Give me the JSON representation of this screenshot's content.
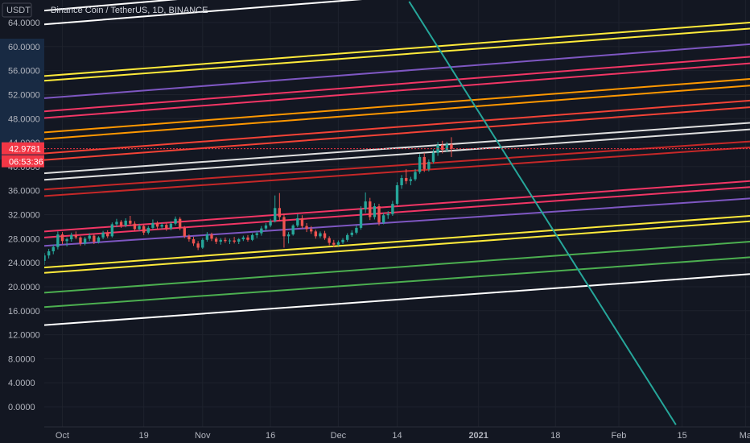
{
  "header": {
    "currency_label": "USDT",
    "symbol_title": "Binance Coin / TetherUS, 1D, BINANCE"
  },
  "price_badges": {
    "last_price": "42.9781",
    "countdown": "06:53:36",
    "color": "#f23645"
  },
  "colors": {
    "background": "#131722",
    "grid": "#1e222d",
    "up_candle": "#26a69a",
    "down_candle": "#ef5350",
    "axis_text": "#b2b5be",
    "axis_highlight": "#1e3a5f"
  },
  "chart_data": {
    "type": "candlestick",
    "y_ticks": [
      "64.0000",
      "60.0000",
      "56.0000",
      "52.0000",
      "48.0000",
      "44.0000",
      "40.0000",
      "36.0000",
      "32.0000",
      "28.0000",
      "24.0000",
      "20.0000",
      "16.0000",
      "12.0000",
      "8.0000",
      "4.0000",
      "0.0000"
    ],
    "y_tick_values": [
      64,
      60,
      56,
      52,
      48,
      44,
      40,
      36,
      32,
      28,
      24,
      20,
      16,
      12,
      8,
      4,
      0
    ],
    "ylim": [
      -3,
      66
    ],
    "x_ticks": [
      {
        "label": "Oct",
        "day": 0
      },
      {
        "label": "19",
        "day": 18
      },
      {
        "label": "Nov",
        "day": 31
      },
      {
        "label": "16",
        "day": 46
      },
      {
        "label": "Dec",
        "day": 61
      },
      {
        "label": "14",
        "day": 74
      },
      {
        "label": "2021",
        "day": 92
      },
      {
        "label": "18",
        "day": 109
      },
      {
        "label": "Feb",
        "day": 123
      },
      {
        "label": "15",
        "day": 137
      },
      {
        "label": "Ma",
        "day": 151
      }
    ],
    "x_range_days": [
      -4,
      152
    ],
    "candles_start_day": -4,
    "candles": [
      [
        24.3,
        25.6,
        23.6,
        25.2
      ],
      [
        25.2,
        26.3,
        24.7,
        25.9
      ],
      [
        25.9,
        27.0,
        25.4,
        26.6
      ],
      [
        26.6,
        29.2,
        26.2,
        28.7
      ],
      [
        28.7,
        29.1,
        27.1,
        27.6
      ],
      [
        27.6,
        28.2,
        26.7,
        27.9
      ],
      [
        27.9,
        29.0,
        27.5,
        28.6
      ],
      [
        28.6,
        29.2,
        27.9,
        28.2
      ],
      [
        28.2,
        28.4,
        26.8,
        27.2
      ],
      [
        27.2,
        28.3,
        26.9,
        28.0
      ],
      [
        28.0,
        28.9,
        27.6,
        28.5
      ],
      [
        28.5,
        28.7,
        27.1,
        27.5
      ],
      [
        27.5,
        28.4,
        27.2,
        28.2
      ],
      [
        28.2,
        29.3,
        27.9,
        29.0
      ],
      [
        29.0,
        29.4,
        28.1,
        28.4
      ],
      [
        28.4,
        30.7,
        28.2,
        30.4
      ],
      [
        30.4,
        31.3,
        29.9,
        30.8
      ],
      [
        30.8,
        31.1,
        29.8,
        30.2
      ],
      [
        30.2,
        31.4,
        29.9,
        31.0
      ],
      [
        31.0,
        31.8,
        30.1,
        30.5
      ],
      [
        30.5,
        30.9,
        29.2,
        29.6
      ],
      [
        29.6,
        30.5,
        29.3,
        30.1
      ],
      [
        30.1,
        30.4,
        28.6,
        29.0
      ],
      [
        29.0,
        30.1,
        28.7,
        29.8
      ],
      [
        29.8,
        31.2,
        29.5,
        30.6
      ],
      [
        30.6,
        30.9,
        29.5,
        30.0
      ],
      [
        30.0,
        30.6,
        29.6,
        30.3
      ],
      [
        30.3,
        30.7,
        29.3,
        29.7
      ],
      [
        29.7,
        30.9,
        29.4,
        30.5
      ],
      [
        30.5,
        31.7,
        30.2,
        31.3
      ],
      [
        31.3,
        31.6,
        29.4,
        29.8
      ],
      [
        29.8,
        30.1,
        28.1,
        28.4
      ],
      [
        28.4,
        28.7,
        27.5,
        27.9
      ],
      [
        27.9,
        28.3,
        26.8,
        27.2
      ],
      [
        27.2,
        27.6,
        26.1,
        26.5
      ],
      [
        26.5,
        28.1,
        26.3,
        27.8
      ],
      [
        27.8,
        29.1,
        27.5,
        28.7
      ],
      [
        28.7,
        29.0,
        27.6,
        28.0
      ],
      [
        28.0,
        28.3,
        27.1,
        27.5
      ],
      [
        27.5,
        28.1,
        27.0,
        27.8
      ],
      [
        27.8,
        28.2,
        27.3,
        27.6
      ],
      [
        27.6,
        28.0,
        27.1,
        27.7
      ],
      [
        27.7,
        28.3,
        27.2,
        27.5
      ],
      [
        27.5,
        28.1,
        27.1,
        27.9
      ],
      [
        27.9,
        28.5,
        27.6,
        28.2
      ],
      [
        28.2,
        28.6,
        27.5,
        27.8
      ],
      [
        27.8,
        28.9,
        27.6,
        28.6
      ],
      [
        28.6,
        29.2,
        28.1,
        28.9
      ],
      [
        28.9,
        30.1,
        28.5,
        29.7
      ],
      [
        29.7,
        30.6,
        29.3,
        30.2
      ],
      [
        30.2,
        31.3,
        29.9,
        30.9
      ],
      [
        30.9,
        35.2,
        30.7,
        33.1
      ],
      [
        33.1,
        35.6,
        30.9,
        31.6
      ],
      [
        31.6,
        32.2,
        26.5,
        28.4
      ],
      [
        28.4,
        29.1,
        27.2,
        28.7
      ],
      [
        28.7,
        30.4,
        28.5,
        30.2
      ],
      [
        30.2,
        32.1,
        29.9,
        31.4
      ],
      [
        31.4,
        31.9,
        29.7,
        30.1
      ],
      [
        30.1,
        30.6,
        29.1,
        29.6
      ],
      [
        29.6,
        30.1,
        28.8,
        29.2
      ],
      [
        29.2,
        29.5,
        28.0,
        28.4
      ],
      [
        28.4,
        29.2,
        28.1,
        28.9
      ],
      [
        28.9,
        29.3,
        27.8,
        28.1
      ],
      [
        28.1,
        28.4,
        26.9,
        27.3
      ],
      [
        27.3,
        27.8,
        26.6,
        27.0
      ],
      [
        27.0,
        27.7,
        26.8,
        27.4
      ],
      [
        27.4,
        28.1,
        27.1,
        27.8
      ],
      [
        27.8,
        28.9,
        27.5,
        28.6
      ],
      [
        28.6,
        29.4,
        28.3,
        29.0
      ],
      [
        29.0,
        30.2,
        28.7,
        29.8
      ],
      [
        29.8,
        33.4,
        29.5,
        32.9
      ],
      [
        32.9,
        35.7,
        32.3,
        34.2
      ],
      [
        34.2,
        34.8,
        31.1,
        31.6
      ],
      [
        31.6,
        33.9,
        31.2,
        33.4
      ],
      [
        33.4,
        33.8,
        30.2,
        30.7
      ],
      [
        30.7,
        32.3,
        30.4,
        31.9
      ],
      [
        31.9,
        32.6,
        31.3,
        32.1
      ],
      [
        32.1,
        34.3,
        31.8,
        33.8
      ],
      [
        33.8,
        37.4,
        33.5,
        36.9
      ],
      [
        36.9,
        38.6,
        36.3,
        38.1
      ],
      [
        38.1,
        39.6,
        37.1,
        37.6
      ],
      [
        37.6,
        38.3,
        36.9,
        37.9
      ],
      [
        37.9,
        39.6,
        37.6,
        39.1
      ],
      [
        39.1,
        42.1,
        38.8,
        41.6
      ],
      [
        41.6,
        42.3,
        39.1,
        39.6
      ],
      [
        39.6,
        41.2,
        39.2,
        40.8
      ],
      [
        40.8,
        42.9,
        40.5,
        42.3
      ],
      [
        42.3,
        44.1,
        41.8,
        43.6
      ],
      [
        43.6,
        44.3,
        42.2,
        42.8
      ],
      [
        42.8,
        44.1,
        42.4,
        43.7
      ],
      [
        43.7,
        44.9,
        41.6,
        42.98
      ]
    ],
    "lines": [
      {
        "color": "#ffffff",
        "y0": 66.0,
        "y1": 76.0
      },
      {
        "color": "#ffffff",
        "y0": 63.7,
        "y1": 73.0
      },
      {
        "color": "#ffeb3b",
        "y0": 55.1,
        "y1": 64.0
      },
      {
        "color": "#ffeb3b",
        "y0": 54.3,
        "y1": 63.0
      },
      {
        "color": "#7e57c2",
        "y0": 51.4,
        "y1": 60.4
      },
      {
        "color": "#f23665",
        "y0": 49.2,
        "y1": 58.3
      },
      {
        "color": "#f23665",
        "y0": 48.1,
        "y1": 57.2
      },
      {
        "color": "#ff9800",
        "y0": 45.7,
        "y1": 54.6
      },
      {
        "color": "#ff9800",
        "y0": 44.6,
        "y1": 53.5
      },
      {
        "color": "#f44336",
        "y0": 42.2,
        "y1": 51.0
      },
      {
        "color": "#f44336",
        "y0": 41.1,
        "y1": 49.9
      },
      {
        "color": "#e0e0e0",
        "y0": 38.9,
        "y1": 47.3
      },
      {
        "color": "#e0e0e0",
        "y0": 37.8,
        "y1": 46.2
      },
      {
        "color": "#c62828",
        "y0": 36.2,
        "y1": 44.2
      },
      {
        "color": "#c62828",
        "y0": 35.1,
        "y1": 43.2
      },
      {
        "color": "#f23665",
        "y0": 29.2,
        "y1": 37.6
      },
      {
        "color": "#f23665",
        "y0": 28.2,
        "y1": 36.6
      },
      {
        "color": "#7e57c2",
        "y0": 26.8,
        "y1": 34.7
      },
      {
        "color": "#ffeb3b",
        "y0": 23.2,
        "y1": 31.8
      },
      {
        "color": "#ffeb3b",
        "y0": 22.3,
        "y1": 30.9
      },
      {
        "color": "#4caf50",
        "y0": 19.0,
        "y1": 27.5
      },
      {
        "color": "#4caf50",
        "y0": 16.6,
        "y1": 24.9
      },
      {
        "color": "#ffffff",
        "y0": 13.6,
        "y1": 22.1
      },
      {
        "color": "#26a69a",
        "x0": 0.517,
        "y0": 67.5,
        "x1": 0.895,
        "y1": -3.0
      }
    ]
  }
}
